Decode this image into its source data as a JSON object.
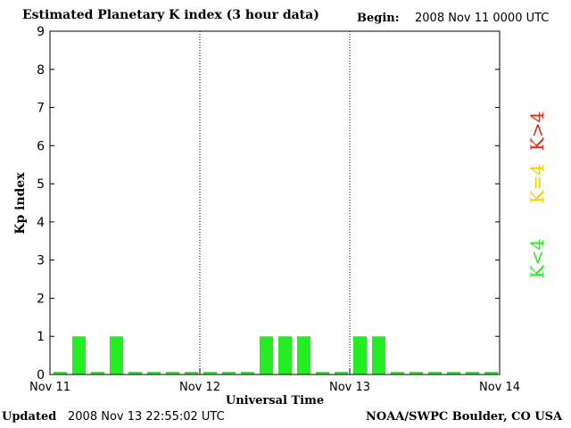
{
  "header": {
    "title": "Estimated Planetary K index (3 hour data)",
    "begin_label": "Begin:",
    "begin_value": "2008 Nov 11 0000 UTC"
  },
  "footer": {
    "updated_label": "Updated",
    "updated_value": "2008 Nov 13 22:55:02 UTC",
    "credit": "NOAA/SWPC Boulder, CO USA"
  },
  "legend": [
    {
      "label": "K<4",
      "color": "#22ee22"
    },
    {
      "label": "K=4",
      "color": "#ffcc00"
    },
    {
      "label": "K>4",
      "color": "#ee2200"
    }
  ],
  "chart_data": {
    "type": "bar",
    "title": "Estimated Planetary K index (3 hour data)",
    "xlabel": "Universal Time",
    "ylabel": "Kp index",
    "ylim": [
      0,
      9
    ],
    "yticks": [
      0,
      1,
      2,
      3,
      4,
      5,
      6,
      7,
      8,
      9
    ],
    "xticks": [
      "Nov 11",
      "Nov 12",
      "Nov 13",
      "Nov 14"
    ],
    "x_interval_hours": 3,
    "values": [
      0,
      1,
      0,
      1,
      0,
      0,
      0,
      0,
      0,
      0,
      0,
      1,
      1,
      1,
      0,
      0,
      1,
      1,
      0,
      0,
      0,
      0,
      0,
      0
    ],
    "bar_color": "#22ee22",
    "day_separators": "dotted"
  }
}
